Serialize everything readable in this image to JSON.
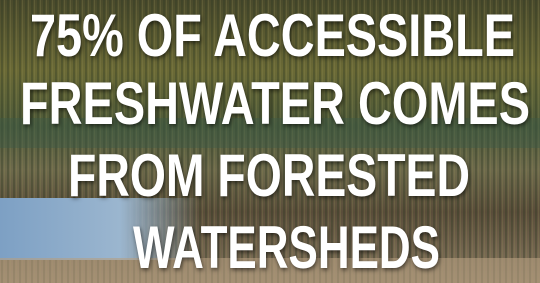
{
  "headline": {
    "lines": [
      "75% OF ACCESSIBLE",
      "FRESHWATER COMES",
      "FROM FORESTED",
      "WATERSHEDS"
    ]
  }
}
